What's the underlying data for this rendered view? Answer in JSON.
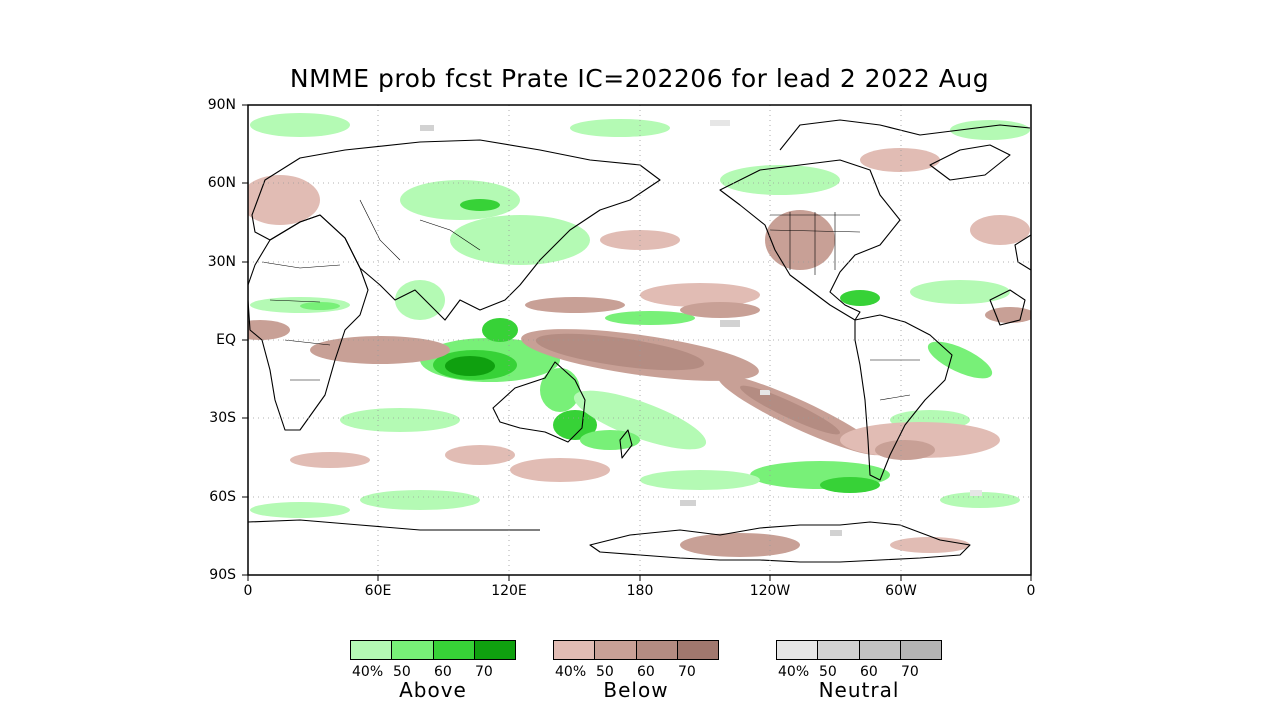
{
  "title": "NMME prob fcst Prate IC=202206 for lead 2 2022 Aug",
  "lat_labels": [
    "90N",
    "60N",
    "30N",
    "EQ",
    "30S",
    "60S",
    "90S"
  ],
  "lon_labels": [
    "0",
    "60E",
    "120E",
    "180",
    "120W",
    "60W",
    "0"
  ],
  "legends": [
    {
      "label": "Above",
      "ticks": [
        "40%",
        "50",
        "60",
        "70"
      ],
      "colors": [
        "#b4fab4",
        "#78f078",
        "#37d237",
        "#0fa00f"
      ]
    },
    {
      "label": "Below",
      "ticks": [
        "40%",
        "50",
        "60",
        "70"
      ],
      "colors": [
        "#e1bcb4",
        "#c8a096",
        "#b48c82",
        "#a0786e"
      ]
    },
    {
      "label": "Neutral",
      "ticks": [
        "40%",
        "50",
        "60",
        "70"
      ],
      "colors": [
        "#e6e6e6",
        "#d2d2d2",
        "#c3c3c3",
        "#b4b4b4"
      ]
    }
  ]
}
